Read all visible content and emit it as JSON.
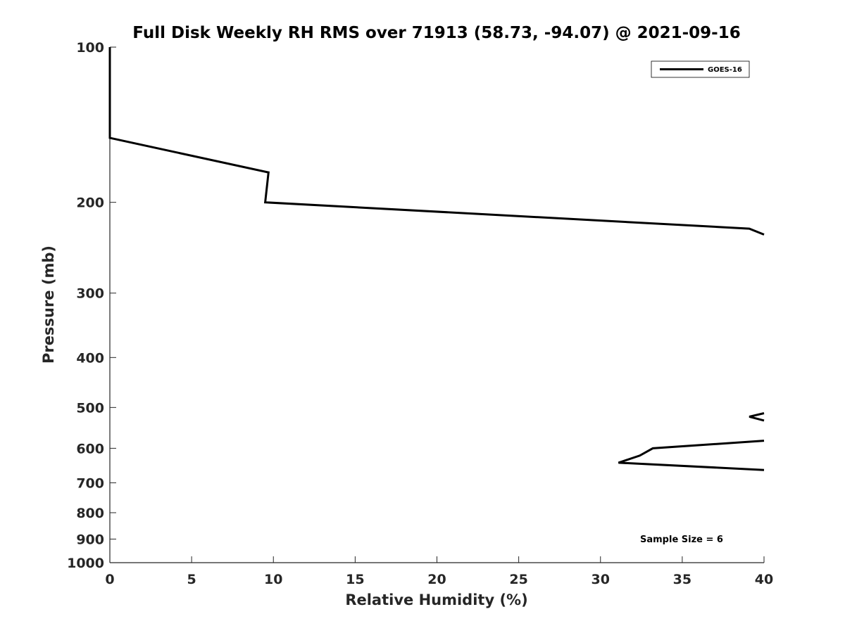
{
  "chart_data": {
    "type": "line",
    "title": "Full Disk Weekly RH RMS over 71913 (58.73, -94.07) @ 2021-09-16",
    "xlabel": "Relative Humidity (%)",
    "ylabel": "Pressure (mb)",
    "xlim": [
      0,
      40
    ],
    "ylim": [
      100,
      1000
    ],
    "y_scale": "log",
    "y_reversed": true,
    "grid": false,
    "legend_position": "top-right",
    "x_ticks": [
      "0",
      "5",
      "10",
      "15",
      "20",
      "25",
      "30",
      "35",
      "40"
    ],
    "y_ticks": [
      "100",
      "200",
      "300",
      "400",
      "500",
      "600",
      "700",
      "800",
      "900",
      "1000"
    ],
    "annotation": "Sample Size = 6",
    "series": [
      {
        "name": "GOES-16",
        "color": "#000000",
        "segments": [
          [
            [
              0.0,
              100
            ],
            [
              0.0,
              150
            ],
            [
              9.7,
              175
            ],
            [
              9.5,
              200
            ],
            [
              39.1,
              225
            ],
            [
              40.0,
              231
            ]
          ],
          [
            [
              40.0,
              513
            ],
            [
              39.1,
              521
            ],
            [
              40.0,
              530
            ]
          ],
          [
            [
              40.0,
              580
            ],
            [
              33.2,
              600
            ],
            [
              32.4,
              620
            ],
            [
              31.1,
              640
            ],
            [
              40.0,
              661
            ]
          ]
        ]
      }
    ]
  }
}
